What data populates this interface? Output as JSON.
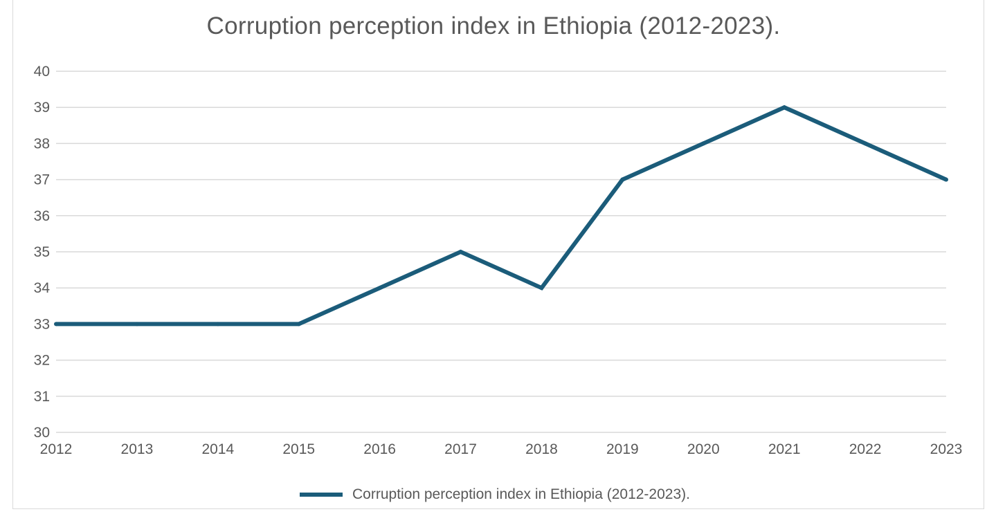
{
  "colors": {
    "series": "#1b5c7a",
    "gridline": "#d9d9d9",
    "text": "#595959"
  },
  "chart_data": {
    "type": "line",
    "title": "Corruption perception index in Ethiopia (2012-2023).",
    "xlabel": "",
    "ylabel": "",
    "categories": [
      "2012",
      "2013",
      "2014",
      "2015",
      "2016",
      "2017",
      "2018",
      "2019",
      "2020",
      "2021",
      "2022",
      "2023"
    ],
    "y_ticks": [
      "30",
      "31",
      "32",
      "33",
      "34",
      "35",
      "36",
      "37",
      "38",
      "39",
      "40"
    ],
    "ylim": [
      30,
      40
    ],
    "grid": true,
    "legend_position": "bottom",
    "series": [
      {
        "name": "Corruption perception index in Ethiopia (2012-2023).",
        "values": [
          33,
          33,
          33,
          33,
          34,
          35,
          34,
          37,
          38,
          39,
          38,
          37
        ]
      }
    ]
  }
}
